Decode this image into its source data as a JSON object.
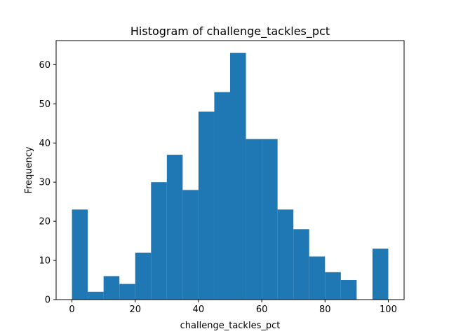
{
  "chart_data": {
    "type": "bar",
    "title": "Histogram of challenge_tackles_pct",
    "xlabel": "challenge_tackles_pct",
    "ylabel": "Frequency",
    "bin_edges": [
      0,
      5,
      10,
      15,
      20,
      25,
      30,
      35,
      40,
      45,
      50,
      55,
      60,
      65,
      70,
      75,
      80,
      85,
      90,
      95,
      100
    ],
    "values": [
      23,
      2,
      6,
      4,
      12,
      30,
      37,
      28,
      48,
      53,
      63,
      41,
      41,
      23,
      18,
      11,
      7,
      5,
      0,
      13
    ],
    "xlim": [
      -5,
      105
    ],
    "ylim": [
      0,
      66.15
    ],
    "xticks": [
      0,
      20,
      40,
      60,
      80,
      100
    ],
    "yticks": [
      0,
      10,
      20,
      30,
      40,
      50,
      60
    ],
    "bar_color": "#1f77b4",
    "grid": false
  }
}
